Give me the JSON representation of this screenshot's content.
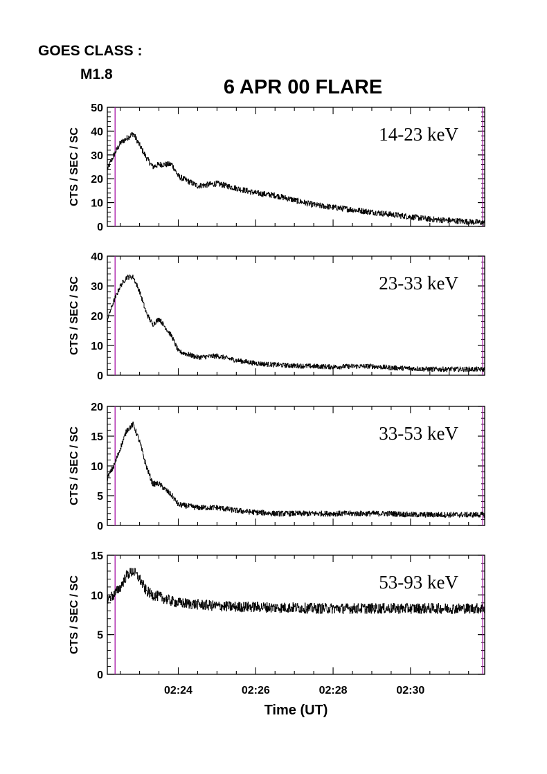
{
  "header": {
    "goes_label": "GOES CLASS :",
    "goes_class": "M1.8",
    "title": "6 APR 00 FLARE"
  },
  "chart_data": {
    "type": "line",
    "title": "6 APR 00 FLARE",
    "xlabel": "Time (UT)",
    "x_range_minutes_utc": [
      "02:22:10",
      "02:31:55"
    ],
    "x_ticks": [
      "02:24",
      "02:26",
      "02:28",
      "02:30"
    ],
    "line_color": "#000000",
    "marker_line_color": "#a000a0",
    "marker_times": [
      "02:22:22",
      "02:31:52"
    ],
    "grid": false,
    "panels": [
      {
        "band": "14-23 keV",
        "ylabel": "CTS / SEC / SC",
        "ylim": [
          0,
          50
        ],
        "yticks": [
          0,
          10,
          20,
          30,
          40,
          50
        ],
        "x": [
          "02:22:10",
          "02:22:20",
          "02:22:30",
          "02:22:40",
          "02:22:50",
          "02:23:00",
          "02:23:10",
          "02:23:20",
          "02:23:30",
          "02:23:40",
          "02:23:50",
          "02:24:00",
          "02:24:30",
          "02:25:00",
          "02:25:30",
          "02:26:00",
          "02:26:30",
          "02:27:00",
          "02:27:30",
          "02:28:00",
          "02:28:30",
          "02:29:00",
          "02:29:30",
          "02:30:00",
          "02:30:30",
          "02:31:00",
          "02:31:30",
          "02:31:55"
        ],
        "y": [
          24,
          30,
          35,
          37,
          39,
          34,
          29,
          25,
          26,
          26,
          26,
          21,
          17,
          18,
          16,
          14,
          13,
          11,
          9,
          8,
          7,
          6,
          5,
          4,
          3,
          2.5,
          2,
          1.5
        ],
        "noise": 1.2
      },
      {
        "band": "23-33 keV",
        "ylabel": "CTS / SEC / SC",
        "ylim": [
          0,
          40
        ],
        "yticks": [
          0,
          10,
          20,
          30,
          40
        ],
        "x": [
          "02:22:10",
          "02:22:20",
          "02:22:30",
          "02:22:40",
          "02:22:50",
          "02:23:00",
          "02:23:10",
          "02:23:20",
          "02:23:30",
          "02:23:40",
          "02:23:50",
          "02:24:00",
          "02:24:30",
          "02:25:00",
          "02:25:30",
          "02:26:00",
          "02:26:30",
          "02:27:00",
          "02:27:30",
          "02:28:00",
          "02:28:30",
          "02:29:00",
          "02:29:30",
          "02:30:00",
          "02:30:30",
          "02:31:00",
          "02:31:30",
          "02:31:55"
        ],
        "y": [
          19,
          25,
          30,
          33,
          33,
          28,
          21,
          17,
          19,
          16,
          13,
          8,
          6,
          6.5,
          5,
          4,
          3.5,
          3.2,
          3,
          2.8,
          3,
          3,
          2.5,
          2.3,
          2,
          2,
          2,
          2
        ],
        "noise": 0.8
      },
      {
        "band": "33-53 keV",
        "ylabel": "CTS / SEC / SC",
        "ylim": [
          0,
          20
        ],
        "yticks": [
          0,
          5,
          10,
          15,
          20
        ],
        "x": [
          "02:22:10",
          "02:22:20",
          "02:22:30",
          "02:22:40",
          "02:22:50",
          "02:23:00",
          "02:23:10",
          "02:23:20",
          "02:23:30",
          "02:23:40",
          "02:23:50",
          "02:24:00",
          "02:24:30",
          "02:25:00",
          "02:25:30",
          "02:26:00",
          "02:26:30",
          "02:27:00",
          "02:27:30",
          "02:28:00",
          "02:28:30",
          "02:29:00",
          "02:29:30",
          "02:30:00",
          "02:30:30",
          "02:31:00",
          "02:31:30",
          "02:31:55"
        ],
        "y": [
          8,
          10,
          13,
          16,
          17,
          14,
          10,
          7,
          7,
          6,
          5,
          3.5,
          3,
          3,
          2.5,
          2.2,
          2,
          2,
          2,
          2,
          2,
          2,
          2,
          1.8,
          1.8,
          1.8,
          1.8,
          1.8
        ],
        "noise": 0.45
      },
      {
        "band": "53-93 keV",
        "ylabel": "CTS / SEC / SC",
        "ylim": [
          0,
          15
        ],
        "yticks": [
          0,
          5,
          10,
          15
        ],
        "x": [
          "02:22:10",
          "02:22:20",
          "02:22:30",
          "02:22:40",
          "02:22:50",
          "02:23:00",
          "02:23:10",
          "02:23:20",
          "02:23:30",
          "02:23:40",
          "02:23:50",
          "02:24:00",
          "02:24:30",
          "02:25:00",
          "02:25:30",
          "02:26:00",
          "02:26:30",
          "02:27:00",
          "02:27:30",
          "02:28:00",
          "02:28:30",
          "02:29:00",
          "02:29:30",
          "02:30:00",
          "02:30:30",
          "02:31:00",
          "02:31:30",
          "02:31:55"
        ],
        "y": [
          9.5,
          10,
          11,
          12.5,
          13,
          12,
          10.5,
          10,
          9.8,
          9.5,
          9.2,
          9,
          8.8,
          8.6,
          8.5,
          8.5,
          8.4,
          8.4,
          8.3,
          8.3,
          8.3,
          8.3,
          8.3,
          8.3,
          8.3,
          8.3,
          8.3,
          8.3
        ],
        "noise": 0.65
      }
    ]
  }
}
